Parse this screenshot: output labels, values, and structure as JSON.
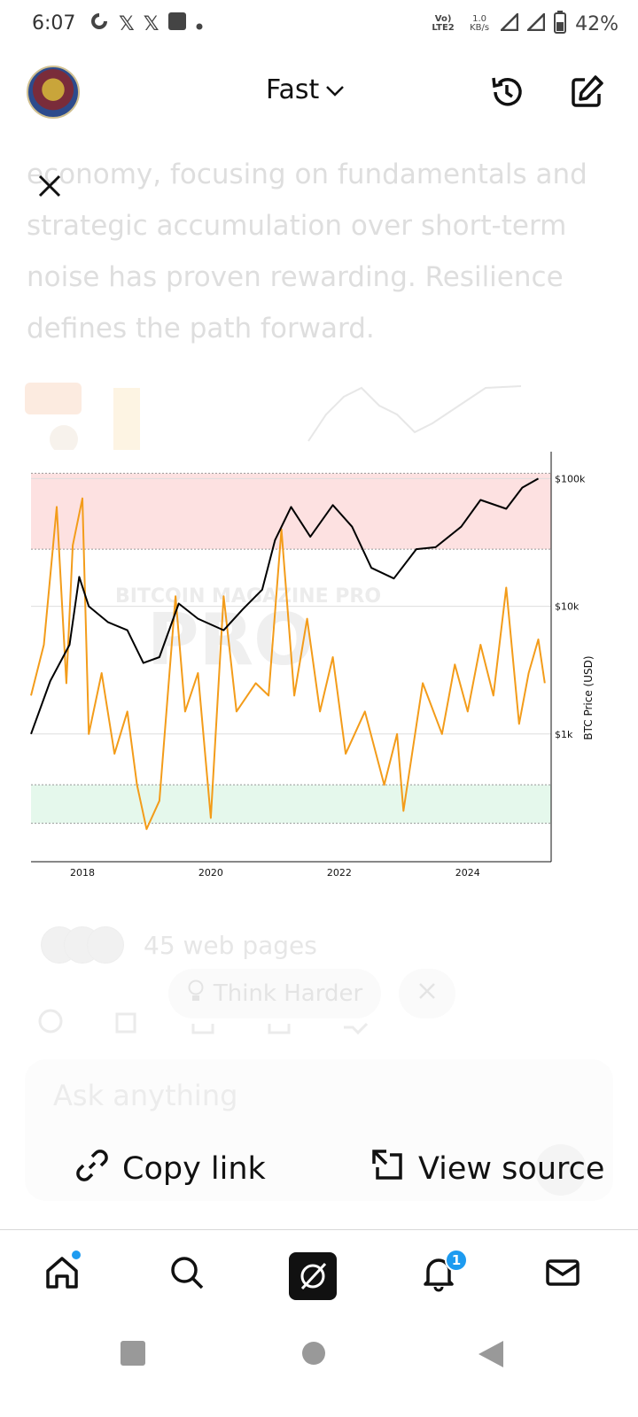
{
  "status_bar": {
    "time": "6:07",
    "network_top": "Vo) LTE2",
    "speed_value": "1.0",
    "speed_unit": "KB/s",
    "battery": "42%"
  },
  "header": {
    "model_label": "Fast"
  },
  "article": {
    "lines": [
      "economy, focusing on fundamentals and",
      "strategic accumulation over short-term",
      "noise has proven rewarding. Resilience",
      "defines the path forward."
    ]
  },
  "chart_data": {
    "type": "line",
    "watermark": "BITCOIN MAGAZINE PRO",
    "ylabel": "BTC Price (USD)",
    "yscale": "log",
    "y_ticks": [
      "$1k",
      "$10k",
      "$100k"
    ],
    "x_ticks": [
      "2018",
      "2020",
      "2022",
      "2024"
    ],
    "xlim": [
      2017.2,
      2025.3
    ],
    "ylim": [
      100,
      150000
    ],
    "bands": [
      {
        "color": "#fde1e1",
        "range": [
          28000,
          110000
        ]
      },
      {
        "color": "#e5f8ec",
        "range": [
          200,
          400
        ]
      }
    ],
    "series": [
      {
        "color": "#000000",
        "x": [
          2017.2,
          2017.5,
          2017.8,
          2017.95,
          2018.1,
          2018.4,
          2018.7,
          2018.95,
          2019.2,
          2019.5,
          2019.8,
          2020.2,
          2020.5,
          2020.8,
          2021.0,
          2021.25,
          2021.55,
          2021.9,
          2022.2,
          2022.5,
          2022.85,
          2023.2,
          2023.5,
          2023.9,
          2024.2,
          2024.6,
          2024.85,
          2025.1
        ],
        "y": [
          1000,
          2600,
          5000,
          17000,
          10000,
          7500,
          6500,
          3600,
          4000,
          10500,
          8000,
          6500,
          9500,
          13500,
          33000,
          60000,
          35000,
          62000,
          42000,
          20000,
          16500,
          28000,
          29000,
          42000,
          68000,
          58000,
          85000,
          100000
        ]
      },
      {
        "color": "#f39c1a",
        "x": [
          2017.2,
          2017.4,
          2017.6,
          2017.75,
          2017.85,
          2018.0,
          2018.1,
          2018.3,
          2018.5,
          2018.7,
          2018.85,
          2019.0,
          2019.2,
          2019.45,
          2019.6,
          2019.8,
          2020.0,
          2020.2,
          2020.4,
          2020.7,
          2020.9,
          2021.1,
          2021.3,
          2021.5,
          2021.7,
          2021.9,
          2022.1,
          2022.4,
          2022.7,
          2022.9,
          2023.0,
          2023.3,
          2023.6,
          2023.8,
          2024.0,
          2024.2,
          2024.4,
          2024.6,
          2024.8,
          2024.95,
          2025.1,
          2025.2
        ],
        "y": [
          2000,
          5000,
          60000,
          2500,
          30000,
          70000,
          1000,
          3000,
          700,
          1500,
          400,
          180,
          300,
          12000,
          1500,
          3000,
          220,
          12000,
          1500,
          2500,
          2000,
          40000,
          2000,
          8000,
          1500,
          4000,
          700,
          1500,
          400,
          1000,
          250,
          2500,
          1000,
          3500,
          1500,
          5000,
          2000,
          14000,
          1200,
          3000,
          5500,
          2500
        ]
      }
    ]
  },
  "sources": {
    "count_text": "45 web pages"
  },
  "composer": {
    "think_harder": "Think Harder",
    "placeholder": "Ask anything"
  },
  "share_sheet": {
    "copy_link": "Copy link",
    "view_source": "View source"
  },
  "bottom_nav": {
    "notification_badge": "1"
  }
}
